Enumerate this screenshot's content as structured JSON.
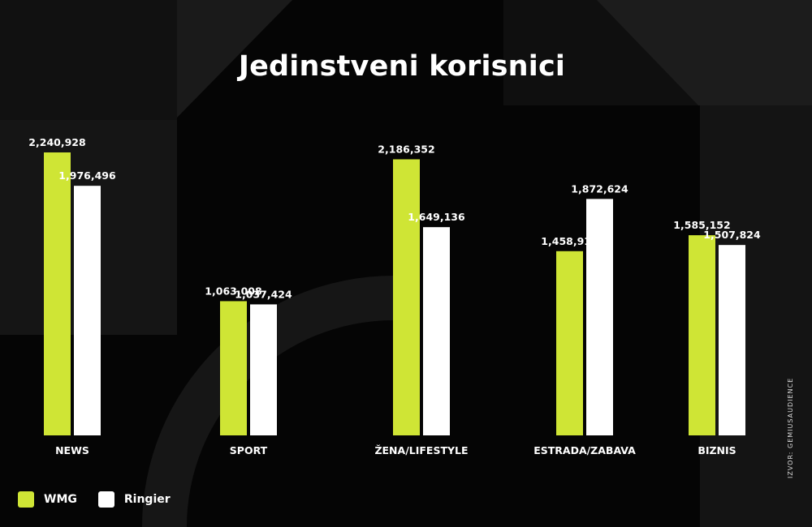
{
  "title": "Jedinstveni korisnici",
  "source_text": "IZVOR: GEMIUSAUDIENCE",
  "colors": {
    "background": "#050505",
    "wmg": "#cfe535",
    "ringier": "#ffffff"
  },
  "legend": [
    {
      "label": "WMG",
      "color": "#cfe535"
    },
    {
      "label": "Ringier",
      "color": "#ffffff"
    }
  ],
  "chart_data": {
    "type": "bar",
    "title": "Jedinstveni korisnici",
    "categories": [
      "NEWS",
      "SPORT",
      "ŽENA/LIFESTYLE",
      "ESTRADA/ZABAVA",
      "BIZNIS"
    ],
    "series": [
      {
        "name": "WMG",
        "color": "#cfe535",
        "values": [
          2240928,
          1063008,
          2186352,
          1458912,
          1585152
        ],
        "labels": [
          "2,240,928",
          "1,063,008",
          "2,186,352",
          "1,458,912",
          "1,585,152"
        ]
      },
      {
        "name": "Ringier",
        "color": "#ffffff",
        "values": [
          1976496,
          1037424,
          1649136,
          1872624,
          1507824
        ],
        "labels": [
          "1,976,496",
          "1,037,424",
          "1,649,136",
          "1,872,624",
          "1,507,824"
        ]
      }
    ],
    "grid": false,
    "legend_position": "bottom-left"
  }
}
